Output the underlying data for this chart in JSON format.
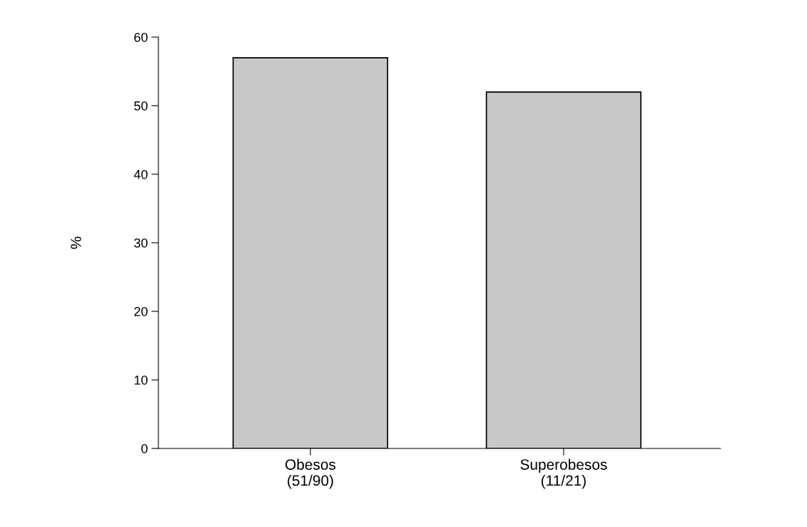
{
  "chart_data": {
    "type": "bar",
    "ylabel": "%",
    "categories": [
      "Obesos\n(51/90)",
      "Superobesos\n(11/21)"
    ],
    "values": [
      57,
      52
    ],
    "color": "#c8c8c8",
    "ylim": [
      0,
      60
    ],
    "yticks": [
      0,
      10,
      20,
      30,
      40,
      50,
      60
    ],
    "grid": false
  }
}
